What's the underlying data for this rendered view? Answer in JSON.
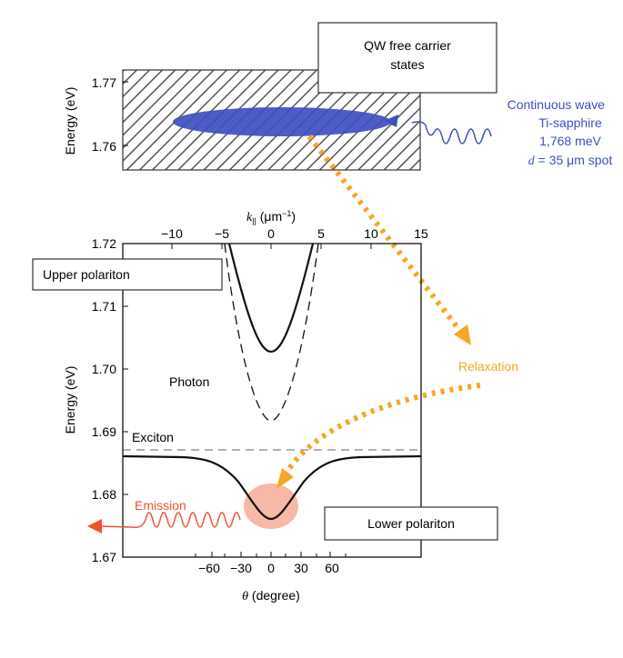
{
  "top_panel": {
    "ylabel": "Energy (eV)",
    "yticks": [
      "1.77",
      "1.76"
    ],
    "qw_box_line1": "QW free carrier",
    "qw_box_line2": "states",
    "pump_line1": "Continuous wave",
    "pump_line2": "Ti-sapphire",
    "pump_line3": "1,768 meV",
    "pump_line4_var": "d",
    "pump_line4_rest": " = 35 μm spot"
  },
  "bottom_panel": {
    "ylabel": "Energy (eV)",
    "xlabel_var": "θ",
    "xlabel_rest": " (degree)",
    "top_axis_var": "k",
    "top_axis_sub": "||",
    "top_axis_rest": " (μm",
    "top_axis_sup": "−1",
    "top_axis_close": ")",
    "yticks": [
      "1.72",
      "1.71",
      "1.70",
      "1.69",
      "1.68",
      "1.67"
    ],
    "bottom_xticks": [
      "−60",
      "−30",
      "0",
      "30",
      "60"
    ],
    "top_xticks": [
      "−10",
      "−5",
      "0",
      "5",
      "10",
      "15"
    ],
    "upper_polariton_label": "Upper polariton",
    "lower_polariton_label": "Lower polariton",
    "photon_label": "Photon",
    "exciton_label": "Exciton",
    "emission_label": "Emission",
    "relaxation_label": "Relaxation"
  },
  "colors": {
    "pump_blue": "#3f4fc0",
    "relaxation_orange": "#f5a623",
    "emission_red": "#f0522e",
    "emission_spot": "#f3a18a",
    "exciton_dash": "#999999"
  }
}
